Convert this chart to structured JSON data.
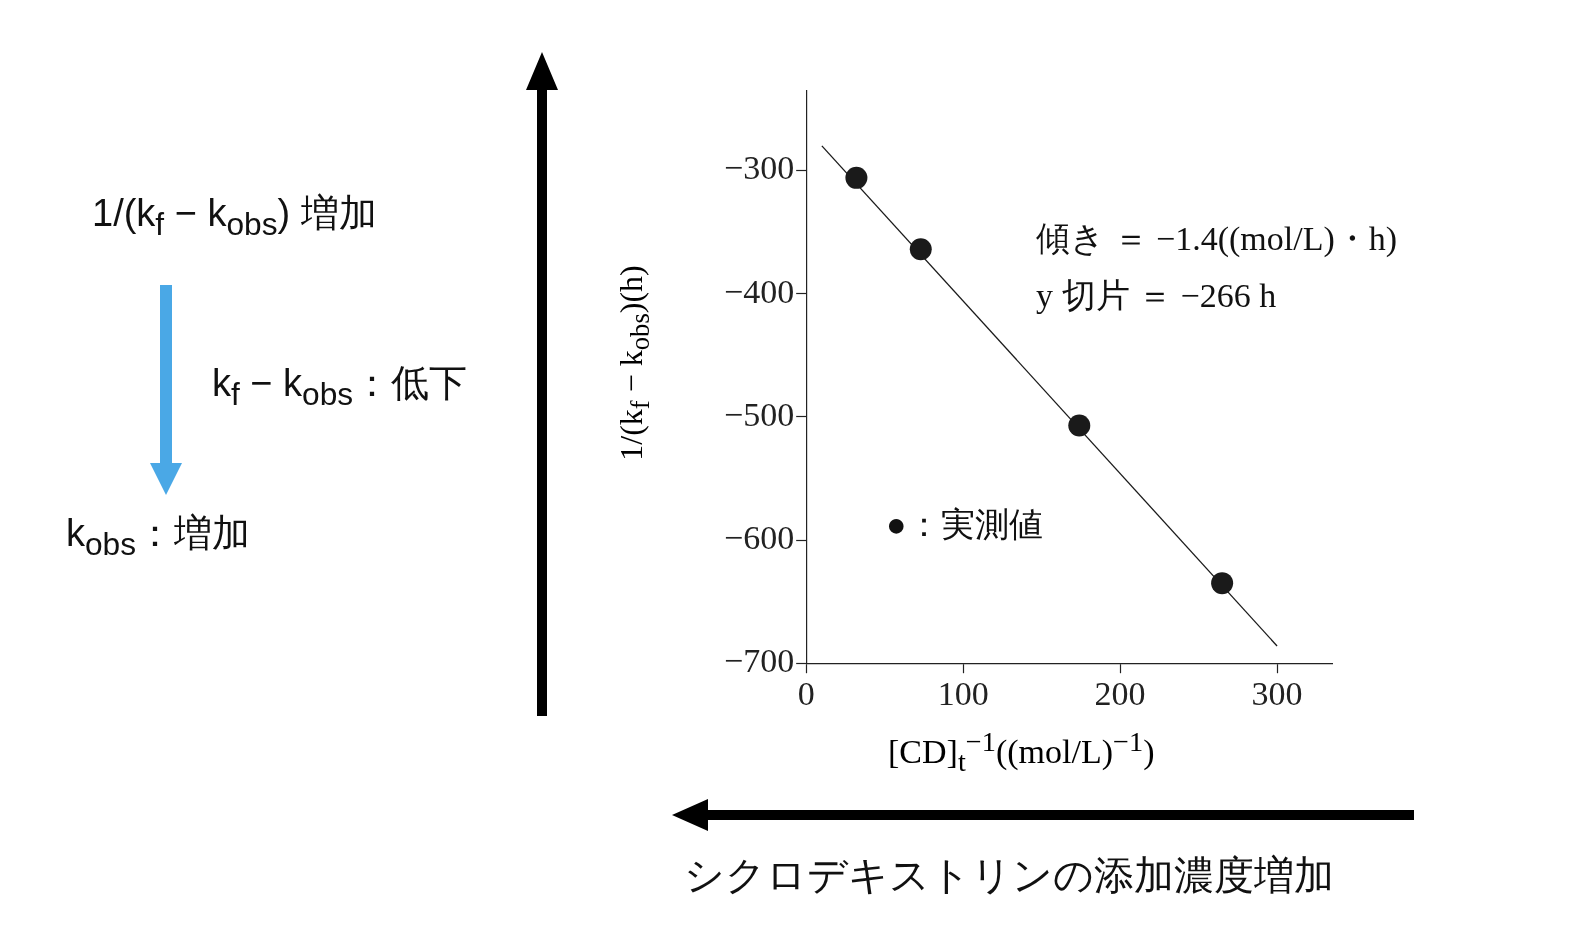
{
  "chart_data": {
    "type": "scatter",
    "xlabel": "[CD]$_{t}$$^{−1}$((mol/L)$^{−1}$)",
    "ylabel": "1/(k$_{f}$ − k$_{obs}$)(h)",
    "xlim": [
      0,
      335
    ],
    "xticks": [
      0,
      100,
      200,
      300
    ],
    "ylim": [
      -700,
      -235
    ],
    "yticks": [
      -700,
      -600,
      -500,
      -400,
      -300
    ],
    "series": [
      {
        "marker": "circle",
        "color": "#1a1a1a",
        "x": [
          32,
          73,
          174,
          265
        ],
        "values": [
          -306,
          -364,
          -507,
          -635
        ]
      },
      {
        "type": "line",
        "color": "#1a1a1a",
        "x": [
          10,
          300
        ],
        "values": [
          -280,
          -686
        ]
      }
    ],
    "grid": false,
    "annotations": [
      "傾き ＝ −1.4((mol/L)・h)",
      "y 切片 ＝ −266 h",
      "●：実測値",
      "1/(k$_{f}$ − k$_{obs}$) 増加",
      "k$_{f}$ − k$_{obs}$：低下",
      "k$_{obs}$：増加",
      "シクロデキストリンの添加濃度増加"
    ]
  }
}
